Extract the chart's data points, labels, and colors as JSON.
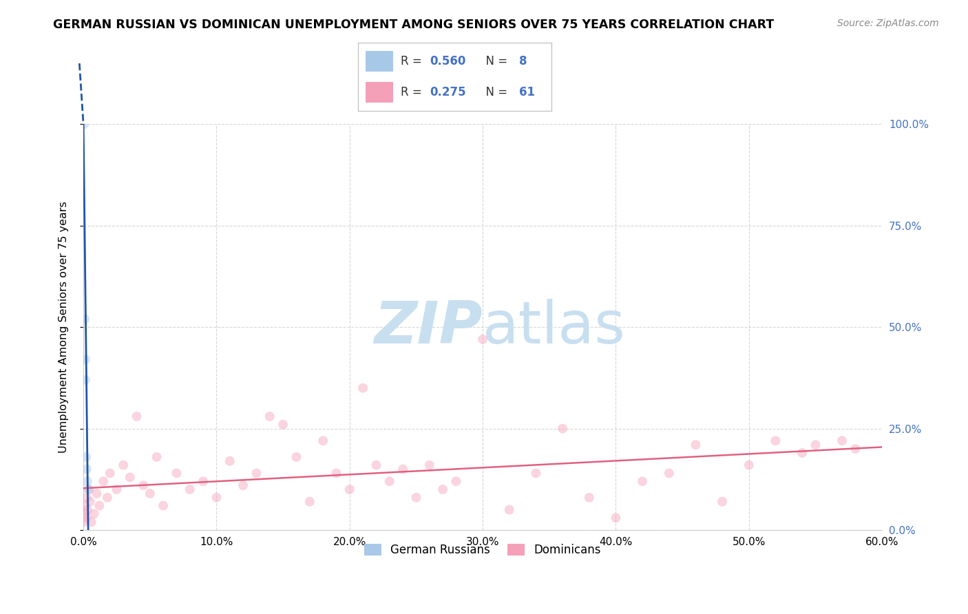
{
  "title": "GERMAN RUSSIAN VS DOMINICAN UNEMPLOYMENT AMONG SENIORS OVER 75 YEARS CORRELATION CHART",
  "source": "Source: ZipAtlas.com",
  "ylabel": "Unemployment Among Seniors over 75 years",
  "xlabel_vals": [
    0,
    10,
    20,
    30,
    40,
    50,
    60
  ],
  "ylabel_vals": [
    0,
    25,
    50,
    75,
    100
  ],
  "xlim": [
    0,
    60
  ],
  "ylim": [
    0,
    100
  ],
  "gr_R": 0.56,
  "gr_N": 8,
  "dom_R": 0.275,
  "dom_N": 61,
  "gr_color": "#a8c8e8",
  "dom_color": "#f4a0b8",
  "gr_line_color": "#2255aa",
  "dom_line_color": "#e06080",
  "legend_label_gr": "German Russians",
  "legend_label_dom": "Dominicans",
  "gr_x": [
    0.05,
    0.1,
    0.15,
    0.15,
    0.2,
    0.25,
    0.3,
    0.4
  ],
  "gr_y": [
    100.0,
    52.0,
    42.0,
    37.0,
    18.0,
    15.0,
    12.0,
    10.0
  ],
  "dom_x": [
    0.05,
    0.1,
    0.15,
    0.2,
    0.25,
    0.3,
    0.4,
    0.5,
    0.6,
    0.8,
    1.0,
    1.2,
    1.5,
    1.8,
    2.0,
    2.5,
    3.0,
    3.5,
    4.0,
    4.5,
    5.0,
    5.5,
    6.0,
    7.0,
    8.0,
    9.0,
    10.0,
    11.0,
    12.0,
    13.0,
    14.0,
    15.0,
    16.0,
    17.0,
    18.0,
    19.0,
    20.0,
    21.0,
    22.0,
    23.0,
    24.0,
    25.0,
    26.0,
    27.0,
    28.0,
    30.0,
    32.0,
    34.0,
    36.0,
    38.0,
    40.0,
    42.0,
    44.0,
    46.0,
    48.0,
    50.0,
    52.0,
    54.0,
    55.0,
    57.0,
    58.0
  ],
  "dom_y": [
    2.0,
    4.0,
    6.0,
    3.0,
    8.0,
    5.0,
    10.0,
    7.0,
    2.0,
    4.0,
    9.0,
    6.0,
    12.0,
    8.0,
    14.0,
    10.0,
    16.0,
    13.0,
    28.0,
    11.0,
    9.0,
    18.0,
    6.0,
    14.0,
    10.0,
    12.0,
    8.0,
    17.0,
    11.0,
    14.0,
    28.0,
    26.0,
    18.0,
    7.0,
    22.0,
    14.0,
    10.0,
    35.0,
    16.0,
    12.0,
    15.0,
    8.0,
    16.0,
    10.0,
    12.0,
    47.0,
    5.0,
    14.0,
    25.0,
    8.0,
    3.0,
    12.0,
    14.0,
    21.0,
    7.0,
    16.0,
    22.0,
    19.0,
    21.0,
    22.0,
    20.0
  ],
  "watermark_zip": "ZIP",
  "watermark_atlas": "atlas",
  "watermark_color": "#c8dff0",
  "grid_color": "#cccccc",
  "background_color": "#ffffff",
  "marker_size": 100,
  "marker_alpha": 0.45,
  "legend_r_color": "#4472c4",
  "text_color": "#333333",
  "right_tick_color": "#4472c4"
}
